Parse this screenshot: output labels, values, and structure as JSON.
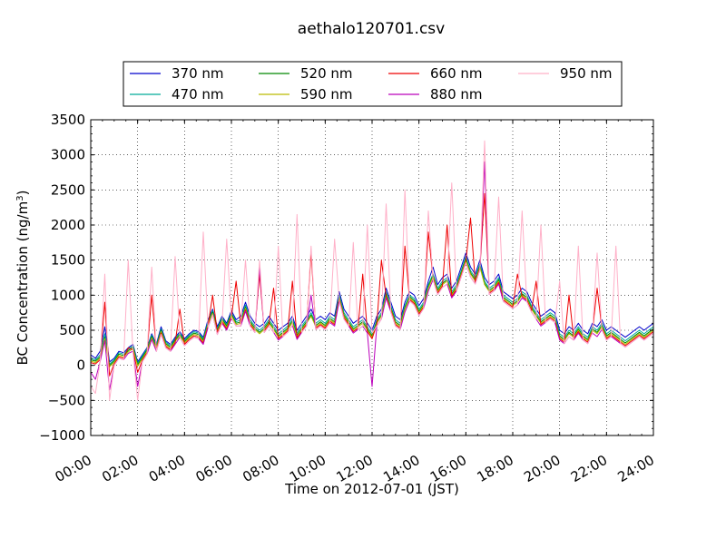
{
  "chart_data": {
    "type": "line",
    "title": "aethalo120701.csv",
    "xlabel": "Time on 2012-07-01 (JST)",
    "ylabel": "BC Concentration (ng/m",
    "ylabel_sup": "3",
    "ylabel_suffix": ")",
    "xlim": [
      0,
      24
    ],
    "ylim": [
      -1000,
      3500
    ],
    "grid": true,
    "legend_position": "top",
    "x_ticks": [
      {
        "value": 0,
        "label": "00:00"
      },
      {
        "value": 2,
        "label": "02:00"
      },
      {
        "value": 4,
        "label": "04:00"
      },
      {
        "value": 6,
        "label": "06:00"
      },
      {
        "value": 8,
        "label": "08:00"
      },
      {
        "value": 10,
        "label": "10:00"
      },
      {
        "value": 12,
        "label": "12:00"
      },
      {
        "value": 14,
        "label": "14:00"
      },
      {
        "value": 16,
        "label": "16:00"
      },
      {
        "value": 18,
        "label": "18:00"
      },
      {
        "value": 20,
        "label": "20:00"
      },
      {
        "value": 22,
        "label": "22:00"
      },
      {
        "value": 24,
        "label": "24:00"
      }
    ],
    "y_ticks": [
      {
        "value": 3500,
        "label": "3500"
      },
      {
        "value": 3000,
        "label": "3000"
      },
      {
        "value": 2500,
        "label": "2500"
      },
      {
        "value": 2000,
        "label": "2000"
      },
      {
        "value": 1500,
        "label": "1500"
      },
      {
        "value": 1000,
        "label": "1000"
      },
      {
        "value": 500,
        "label": "500"
      },
      {
        "value": 0,
        "label": "0"
      },
      {
        "value": -500,
        "label": "−500"
      },
      {
        "value": -1000,
        "label": "−1000"
      }
    ],
    "x": [
      0,
      0.2,
      0.4,
      0.6,
      0.8,
      1.0,
      1.2,
      1.4,
      1.6,
      1.8,
      2.0,
      2.2,
      2.4,
      2.6,
      2.8,
      3.0,
      3.2,
      3.4,
      3.6,
      3.8,
      4.0,
      4.2,
      4.4,
      4.6,
      4.8,
      5.0,
      5.2,
      5.4,
      5.6,
      5.8,
      6.0,
      6.2,
      6.4,
      6.6,
      6.8,
      7.0,
      7.2,
      7.4,
      7.6,
      7.8,
      8.0,
      8.2,
      8.4,
      8.6,
      8.8,
      9.0,
      9.2,
      9.4,
      9.6,
      9.8,
      10.0,
      10.2,
      10.4,
      10.6,
      10.8,
      11.0,
      11.2,
      11.4,
      11.6,
      11.8,
      12.0,
      12.2,
      12.4,
      12.6,
      12.8,
      13.0,
      13.2,
      13.4,
      13.6,
      13.8,
      14.0,
      14.2,
      14.4,
      14.6,
      14.8,
      15.0,
      15.2,
      15.4,
      15.6,
      15.8,
      16.0,
      16.2,
      16.4,
      16.6,
      16.8,
      17.0,
      17.2,
      17.4,
      17.6,
      17.8,
      18.0,
      18.2,
      18.4,
      18.6,
      18.8,
      19.0,
      19.2,
      19.4,
      19.6,
      19.8,
      20.0,
      20.2,
      20.4,
      20.6,
      20.8,
      21.0,
      21.2,
      21.4,
      21.6,
      21.8,
      22.0,
      22.2,
      22.4,
      22.6,
      22.8,
      23.0,
      23.2,
      23.4,
      23.6,
      23.8,
      24.0
    ],
    "series": [
      {
        "name": "370 nm",
        "color": "#0000cc",
        "values": [
          150,
          100,
          200,
          550,
          50,
          100,
          200,
          180,
          250,
          300,
          50,
          150,
          250,
          450,
          300,
          550,
          350,
          300,
          400,
          480,
          380,
          450,
          500,
          480,
          400,
          650,
          800,
          550,
          700,
          600,
          780,
          650,
          700,
          900,
          700,
          600,
          550,
          600,
          700,
          600,
          500,
          550,
          600,
          700,
          500,
          600,
          700,
          800,
          650,
          700,
          650,
          750,
          700,
          1050,
          800,
          700,
          600,
          650,
          700,
          600,
          500,
          700,
          800,
          1100,
          900,
          700,
          650,
          900,
          1050,
          1000,
          850,
          950,
          1200,
          1400,
          1150,
          1250,
          1300,
          1100,
          1200,
          1400,
          1600,
          1400,
          1300,
          1500,
          1250,
          1150,
          1200,
          1300,
          1050,
          1000,
          950,
          1000,
          1100,
          1050,
          900,
          800,
          700,
          750,
          800,
          750,
          500,
          450,
          550,
          500,
          600,
          500,
          450,
          600,
          550,
          650,
          500,
          550,
          500,
          450,
          400,
          450,
          500,
          550,
          500,
          550,
          600
        ]
      },
      {
        "name": "470 nm",
        "color": "#00aa99",
        "values": [
          100,
          80,
          150,
          450,
          20,
          80,
          180,
          160,
          230,
          280,
          30,
          130,
          240,
          430,
          280,
          520,
          330,
          280,
          380,
          460,
          360,
          430,
          480,
          460,
          380,
          620,
          780,
          520,
          680,
          580,
          750,
          620,
          650,
          860,
          650,
          560,
          500,
          560,
          650,
          560,
          450,
          500,
          560,
          660,
          460,
          560,
          650,
          750,
          600,
          650,
          600,
          700,
          650,
          1000,
          750,
          650,
          550,
          600,
          650,
          550,
          450,
          650,
          750,
          1050,
          850,
          650,
          600,
          850,
          1000,
          950,
          800,
          900,
          1150,
          1300,
          1100,
          1200,
          1250,
          1050,
          1150,
          1350,
          1550,
          1350,
          1250,
          1450,
          1200,
          1100,
          1150,
          1250,
          1000,
          950,
          900,
          950,
          1050,
          1000,
          850,
          750,
          650,
          700,
          750,
          700,
          450,
          400,
          500,
          450,
          550,
          450,
          400,
          550,
          500,
          600,
          450,
          500,
          450,
          400,
          350,
          400,
          450,
          500,
          450,
          500,
          550
        ]
      },
      {
        "name": "520 nm",
        "color": "#008800",
        "values": [
          80,
          60,
          120,
          400,
          0,
          60,
          160,
          140,
          210,
          260,
          10,
          110,
          220,
          410,
          260,
          500,
          310,
          260,
          360,
          440,
          340,
          410,
          460,
          440,
          360,
          600,
          760,
          500,
          660,
          560,
          730,
          600,
          620,
          830,
          620,
          530,
          470,
          530,
          620,
          530,
          420,
          470,
          530,
          630,
          430,
          530,
          620,
          720,
          570,
          620,
          570,
          670,
          620,
          980,
          720,
          620,
          520,
          570,
          620,
          520,
          420,
          620,
          720,
          1020,
          820,
          620,
          570,
          820,
          980,
          920,
          770,
          870,
          1120,
          1280,
          1070,
          1170,
          1220,
          1020,
          1120,
          1320,
          1520,
          1320,
          1220,
          1420,
          1170,
          1070,
          1120,
          1220,
          970,
          920,
          870,
          920,
          1020,
          970,
          820,
          720,
          620,
          670,
          720,
          670,
          420,
          370,
          470,
          420,
          520,
          420,
          370,
          520,
          470,
          570,
          420,
          470,
          420,
          370,
          320,
          370,
          420,
          470,
          420,
          470,
          520
        ]
      },
      {
        "name": "590 nm",
        "color": "#bbbb00",
        "values": [
          60,
          40,
          100,
          380,
          -20,
          40,
          140,
          120,
          190,
          240,
          -10,
          90,
          200,
          390,
          240,
          480,
          290,
          240,
          340,
          420,
          320,
          390,
          440,
          420,
          340,
          580,
          740,
          480,
          640,
          540,
          710,
          580,
          600,
          810,
          600,
          510,
          450,
          510,
          600,
          510,
          400,
          450,
          510,
          610,
          410,
          510,
          600,
          700,
          550,
          600,
          550,
          650,
          600,
          960,
          700,
          600,
          500,
          550,
          600,
          500,
          400,
          600,
          700,
          1000,
          800,
          600,
          550,
          800,
          960,
          900,
          750,
          850,
          1100,
          1260,
          1050,
          1150,
          1200,
          1000,
          1100,
          1300,
          1500,
          1300,
          1200,
          1400,
          1150,
          1050,
          1100,
          1200,
          950,
          900,
          850,
          900,
          1000,
          950,
          800,
          700,
          600,
          650,
          700,
          650,
          400,
          350,
          450,
          400,
          500,
          400,
          350,
          500,
          450,
          550,
          400,
          450,
          400,
          350,
          300,
          350,
          400,
          450,
          400,
          450,
          500
        ]
      },
      {
        "name": "660 nm",
        "color": "#ee0000",
        "values": [
          40,
          20,
          80,
          900,
          -150,
          20,
          120,
          100,
          250,
          220,
          -100,
          70,
          180,
          1000,
          220,
          460,
          270,
          220,
          320,
          800,
          300,
          370,
          420,
          400,
          320,
          560,
          1000,
          460,
          620,
          520,
          690,
          1200,
          580,
          790,
          580,
          490,
          1300,
          490,
          580,
          1100,
          380,
          430,
          490,
          1200,
          390,
          490,
          580,
          1600,
          530,
          580,
          530,
          630,
          580,
          940,
          680,
          580,
          480,
          530,
          1300,
          480,
          380,
          580,
          1500,
          980,
          780,
          580,
          530,
          1700,
          940,
          880,
          730,
          830,
          1900,
          1240,
          1030,
          1130,
          2000,
          980,
          1080,
          1280,
          1480,
          2100,
          1180,
          1380,
          2450,
          1030,
          1080,
          1180,
          930,
          880,
          830,
          1300,
          980,
          930,
          780,
          1200,
          580,
          630,
          680,
          630,
          380,
          330,
          1000,
          380,
          480,
          380,
          330,
          480,
          1100,
          530,
          380,
          430,
          380,
          330,
          280,
          330,
          380,
          430,
          380,
          430,
          480
        ]
      },
      {
        "name": "880 nm",
        "color": "#bb00bb",
        "values": [
          -100,
          -200,
          50,
          350,
          -350,
          0,
          100,
          80,
          170,
          200,
          -300,
          50,
          160,
          370,
          200,
          440,
          250,
          200,
          300,
          400,
          280,
          350,
          400,
          380,
          300,
          540,
          720,
          440,
          600,
          500,
          670,
          560,
          560,
          770,
          560,
          470,
          1400,
          470,
          560,
          470,
          360,
          410,
          470,
          570,
          370,
          470,
          560,
          1000,
          510,
          560,
          510,
          610,
          560,
          920,
          660,
          560,
          460,
          510,
          560,
          460,
          -300,
          560,
          660,
          960,
          760,
          560,
          510,
          760,
          920,
          860,
          710,
          810,
          1060,
          1220,
          1010,
          1110,
          1160,
          960,
          1060,
          1260,
          1460,
          1260,
          1160,
          1360,
          2900,
          1010,
          1060,
          1160,
          910,
          860,
          810,
          860,
          960,
          910,
          760,
          660,
          560,
          610,
          660,
          610,
          360,
          310,
          410,
          360,
          460,
          360,
          310,
          460,
          410,
          510,
          360,
          410,
          360,
          310,
          260,
          310,
          360,
          410,
          360,
          410,
          460
        ]
      },
      {
        "name": "950 nm",
        "color": "#ffb0c8",
        "values": [
          -300,
          -400,
          50,
          1300,
          -500,
          0,
          100,
          80,
          1500,
          200,
          -500,
          50,
          160,
          1400,
          200,
          440,
          250,
          200,
          1550,
          400,
          280,
          350,
          400,
          380,
          1900,
          540,
          720,
          440,
          600,
          1800,
          670,
          560,
          560,
          1500,
          560,
          470,
          1500,
          470,
          560,
          470,
          1700,
          410,
          470,
          570,
          2150,
          470,
          560,
          1700,
          510,
          560,
          510,
          610,
          1800,
          920,
          660,
          560,
          1750,
          510,
          560,
          2000,
          460,
          560,
          660,
          2300,
          760,
          560,
          510,
          2500,
          920,
          860,
          710,
          810,
          2200,
          1220,
          1010,
          1110,
          1160,
          2600,
          1060,
          1260,
          1460,
          1260,
          1160,
          1360,
          3200,
          1010,
          1060,
          2400,
          910,
          860,
          810,
          860,
          2200,
          910,
          760,
          660,
          2000,
          610,
          660,
          610,
          1200,
          310,
          410,
          360,
          1700,
          360,
          310,
          460,
          1600,
          510,
          360,
          410,
          1700,
          310,
          260,
          310,
          360,
          410,
          360,
          410,
          460
        ]
      }
    ]
  }
}
